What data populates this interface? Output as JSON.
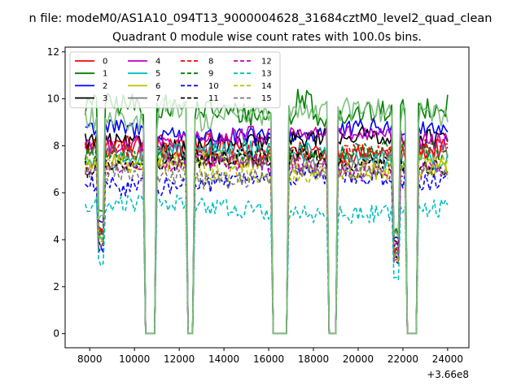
{
  "suptitle": "n file: modeM0/AS1A10_094T13_9000004628_31684cztM0_level2_quad_clean",
  "chart_data": {
    "type": "line",
    "title": "Quadrant 0 module wise count rates with 100.0s bins.",
    "xlabel": "",
    "ylabel": "",
    "x_offset_label": "+3.66e8",
    "xlim": [
      6900,
      24950
    ],
    "ylim": [
      -0.6,
      12.2
    ],
    "xticks": [
      8000,
      10000,
      12000,
      14000,
      16000,
      18000,
      20000,
      22000,
      24000
    ],
    "yticks": [
      0,
      2,
      4,
      6,
      8,
      10,
      12
    ],
    "legend": {
      "placement": "top-left",
      "columns": 4
    },
    "x_start": 7800,
    "x_end": 24000,
    "bin_width_s": 100,
    "gaps": [
      {
        "start": 8400,
        "end": 8600,
        "depth": 0.55
      },
      {
        "start": 10500,
        "end": 10900,
        "depth": 0
      },
      {
        "start": 12400,
        "end": 12600,
        "depth": 0
      },
      {
        "start": 16200,
        "end": 16800,
        "depth": 0
      },
      {
        "start": 18700,
        "end": 19000,
        "depth": 0
      },
      {
        "start": 21600,
        "end": 21800,
        "depth": 0.45
      },
      {
        "start": 22200,
        "end": 22600,
        "depth": 0
      }
    ],
    "series": [
      {
        "name": "0",
        "color": "#ff0000",
        "dash": "solid",
        "level": 7.9
      },
      {
        "name": "1",
        "color": "#008000",
        "dash": "solid",
        "level": 9.5
      },
      {
        "name": "2",
        "color": "#0000ff",
        "dash": "solid",
        "level": 8.6
      },
      {
        "name": "3",
        "color": "#000000",
        "dash": "solid",
        "level": 8.2
      },
      {
        "name": "4",
        "color": "#bf00bf",
        "dash": "solid",
        "level": 8.3
      },
      {
        "name": "5",
        "color": "#00bfbf",
        "dash": "solid",
        "level": 7.6
      },
      {
        "name": "6",
        "color": "#bfbf00",
        "dash": "solid",
        "level": 7.2
      },
      {
        "name": "7",
        "color": "#7a7a7a",
        "dash": "solid",
        "level": 7.5
      },
      {
        "name": "8",
        "color": "#ff0000",
        "dash": "dashed",
        "level": 7.7
      },
      {
        "name": "9",
        "color": "#008000",
        "dash": "dashed",
        "level": 7.6
      },
      {
        "name": "10",
        "color": "#0000ff",
        "dash": "dashed",
        "level": 6.5
      },
      {
        "name": "11",
        "color": "#000000",
        "dash": "dashed",
        "level": 7.3
      },
      {
        "name": "12",
        "color": "#bf00bf",
        "dash": "dashed",
        "level": 7.1
      },
      {
        "name": "13",
        "color": "#00bfbf",
        "dash": "dashed",
        "level": 5.3
      },
      {
        "name": "14",
        "color": "#bfbf00",
        "dash": "dashed",
        "level": 7.0
      },
      {
        "name": "15",
        "color": "#7a7a7a",
        "dash": "dashed",
        "level": 6.8
      },
      {
        "name": "",
        "color": "#7fbf7f",
        "dash": "solid",
        "level": 9.3
      }
    ]
  }
}
